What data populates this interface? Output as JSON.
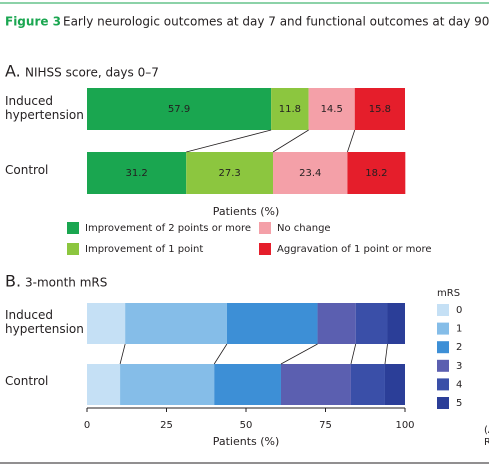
{
  "header": {
    "label": "Figure 3",
    "title": "Early neurologic outcomes at day 7 and functional outcomes at day 90"
  },
  "clipped_text": [
    "(A",
    "R"
  ],
  "chart_data": [
    {
      "type": "bar",
      "panel": "A.",
      "title": "NIHSS score, days 0–7",
      "orientation": "horizontal",
      "stacked": true,
      "categories": [
        "Induced hypertension",
        "Control"
      ],
      "xlim": [
        0,
        100
      ],
      "xlabel": "Patients (%)",
      "series": [
        {
          "name": "Improvement of 2 points or more",
          "color": "#1aa650",
          "values": [
            57.9,
            31.2
          ]
        },
        {
          "name": "Improvement of 1 point",
          "color": "#8cc63f",
          "values": [
            11.8,
            27.3
          ]
        },
        {
          "name": "No change",
          "color": "#f4a0a8",
          "values": [
            14.5,
            23.4
          ]
        },
        {
          "name": "Aggravation of 1 point or more",
          "color": "#e51e2b",
          "values": [
            15.8,
            18.2
          ]
        }
      ]
    },
    {
      "type": "bar",
      "panel": "B.",
      "title": "3-month mRS",
      "orientation": "horizontal",
      "stacked": true,
      "categories": [
        "Induced hypertension",
        "Control"
      ],
      "xlim": [
        0,
        100
      ],
      "xticks": [
        0,
        25,
        50,
        75,
        100
      ],
      "xlabel": "Patients (%)",
      "legend_title": "mRS",
      "series": [
        {
          "name": "0",
          "color": "#c5e0f5",
          "values": [
            12,
            10.4
          ]
        },
        {
          "name": "1",
          "color": "#85bde8",
          "values": [
            32,
            29.6
          ]
        },
        {
          "name": "2",
          "color": "#3d8fd6",
          "values": [
            28.5,
            21
          ]
        },
        {
          "name": "3",
          "color": "#5b5fb0",
          "values": [
            12,
            22
          ]
        },
        {
          "name": "4",
          "color": "#3a4fa8",
          "values": [
            10,
            10.7
          ]
        },
        {
          "name": "5",
          "color": "#2b3e98",
          "values": [
            5.5,
            6.3
          ]
        }
      ]
    }
  ]
}
